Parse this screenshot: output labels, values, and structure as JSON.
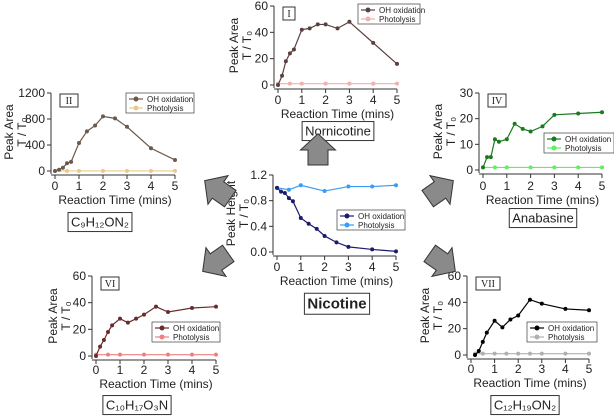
{
  "chart_data": [
    {
      "id": "I",
      "type": "line",
      "title": "Nornicotine",
      "numeral": "I",
      "xlabel": "Reaction Time (mins)",
      "ylabel": [
        "Peak Area",
        "T / T₀"
      ],
      "xlim": [
        0,
        5
      ],
      "ylim": [
        0,
        60
      ],
      "xticks": [
        0,
        1,
        2,
        3,
        4,
        5
      ],
      "yticks": [
        0,
        20,
        40,
        60
      ],
      "series": [
        {
          "name": "OH oxidation",
          "color": "#5b4040",
          "x": [
            0,
            0.17,
            0.33,
            0.5,
            0.67,
            1,
            1.33,
            1.67,
            2,
            2.5,
            3,
            4,
            5
          ],
          "y": [
            0,
            7,
            18,
            24,
            27,
            42,
            43,
            46,
            46,
            43,
            48,
            32,
            16
          ]
        },
        {
          "name": "Photolysis",
          "color": "#f0b0b0",
          "x": [
            0,
            0.5,
            1,
            2,
            3,
            4,
            5
          ],
          "y": [
            1,
            1,
            1,
            1,
            1,
            1,
            1
          ]
        }
      ]
    },
    {
      "id": "II",
      "type": "line",
      "title": "C₉H₁₂ON₂",
      "numeral": "II",
      "xlabel": "Reaction Time (mins)",
      "ylabel": [
        "Peak Area",
        "T / T₀"
      ],
      "xlim": [
        0,
        5
      ],
      "ylim": [
        0,
        1200
      ],
      "xticks": [
        0,
        1,
        2,
        3,
        4,
        5
      ],
      "yticks": [
        0,
        400,
        800,
        1200
      ],
      "series": [
        {
          "name": "OH oxidation",
          "color": "#6b5a4b",
          "x": [
            0,
            0.17,
            0.33,
            0.5,
            0.67,
            1,
            1.33,
            1.67,
            2,
            2.5,
            3,
            4,
            5
          ],
          "y": [
            0,
            20,
            50,
            120,
            140,
            430,
            610,
            700,
            840,
            810,
            680,
            350,
            170
          ]
        },
        {
          "name": "Photolysis",
          "color": "#ebc98e",
          "x": [
            0,
            0.5,
            1,
            2,
            3,
            4,
            5
          ],
          "y": [
            1,
            1,
            1,
            1,
            1,
            1,
            1
          ]
        }
      ]
    },
    {
      "id": "IV",
      "type": "line",
      "title": "Anabasine",
      "numeral": "IV",
      "xlabel": "Reaction Time (mins)",
      "ylabel": [
        "Peak Area",
        "T / T₀"
      ],
      "xlim": [
        0,
        5
      ],
      "ylim": [
        0,
        30
      ],
      "xticks": [
        0,
        1,
        2,
        3,
        4,
        5
      ],
      "yticks": [
        0,
        10,
        20,
        30
      ],
      "series": [
        {
          "name": "OH oxidation",
          "color": "#1b7a1f",
          "x": [
            0,
            0.17,
            0.33,
            0.5,
            0.67,
            1,
            1.33,
            1.67,
            2,
            2.5,
            3,
            4,
            5
          ],
          "y": [
            1,
            5,
            5,
            12,
            11,
            12,
            18,
            16,
            15,
            17,
            21.5,
            22,
            22.5
          ]
        },
        {
          "name": "Photolysis",
          "color": "#5ff05f",
          "x": [
            0,
            0.5,
            1,
            2,
            3,
            4,
            5
          ],
          "y": [
            1,
            1,
            1,
            1,
            1,
            1,
            1
          ]
        }
      ]
    },
    {
      "id": "Nicotine",
      "type": "line",
      "title": "Nicotine",
      "numeral": "",
      "xlabel": "Reaction Time (mins)",
      "ylabel": [
        "Peak Height",
        "T / T₀"
      ],
      "xlim": [
        0,
        5
      ],
      "ylim": [
        0,
        1.2
      ],
      "xticks": [
        0,
        1,
        2,
        3,
        4,
        5
      ],
      "yticks": [
        "0.0",
        "0.4",
        "0.8",
        "1.2"
      ],
      "series": [
        {
          "name": "OH oxidation",
          "color": "#1c1c6e",
          "x": [
            0,
            0.17,
            0.33,
            0.5,
            0.67,
            1,
            1.33,
            1.67,
            2,
            2.5,
            3,
            4,
            5
          ],
          "y": [
            1,
            0.94,
            0.92,
            0.84,
            0.79,
            0.53,
            0.44,
            0.36,
            0.25,
            0.15,
            0.08,
            0.04,
            0.01
          ]
        },
        {
          "name": "Photolysis",
          "color": "#3a9cf5",
          "x": [
            0,
            0.5,
            1,
            2,
            3,
            4,
            5
          ],
          "y": [
            1,
            0.97,
            1.04,
            0.95,
            1.02,
            1.02,
            1.04
          ]
        }
      ]
    },
    {
      "id": "VI",
      "type": "line",
      "title": "C₁₀H₁₇O₃N",
      "numeral": "VI",
      "xlabel": "Reaction Time (mins)",
      "ylabel": [
        "Peak Area",
        "T / T₀"
      ],
      "xlim": [
        0,
        5
      ],
      "ylim": [
        0,
        60
      ],
      "xticks": [
        0,
        1,
        2,
        3,
        4,
        5
      ],
      "yticks": [
        0,
        20,
        40,
        60
      ],
      "series": [
        {
          "name": "OH oxidation",
          "color": "#6b2c2c",
          "x": [
            0,
            0.17,
            0.33,
            0.5,
            0.67,
            1,
            1.33,
            1.67,
            2,
            2.5,
            3,
            4,
            5
          ],
          "y": [
            0,
            7,
            12,
            18,
            23,
            28,
            25,
            28,
            31,
            37,
            33,
            36,
            37
          ]
        },
        {
          "name": "Photolysis",
          "color": "#ef8080",
          "x": [
            0,
            0.5,
            1,
            2,
            3,
            4,
            5
          ],
          "y": [
            1,
            1,
            1,
            1,
            1,
            1,
            1
          ]
        }
      ]
    },
    {
      "id": "VII",
      "type": "line",
      "title": "C₁₂H₁₉ON₂",
      "numeral": "VII",
      "xlabel": "Reaction Time (mins)",
      "ylabel": [
        "Peak Area",
        "T / T₀"
      ],
      "xlim": [
        0,
        5
      ],
      "ylim": [
        0,
        60
      ],
      "xticks": [
        0,
        1,
        2,
        3,
        4,
        5
      ],
      "yticks": [
        0,
        20,
        40,
        60
      ],
      "series": [
        {
          "name": "OH oxidation",
          "color": "#000000",
          "x": [
            0.17,
            0.33,
            0.5,
            0.67,
            1,
            1.33,
            1.67,
            2,
            2.5,
            3,
            4,
            5
          ],
          "y": [
            0,
            3,
            10,
            17,
            26,
            21,
            27,
            30,
            42,
            39,
            35,
            34
          ]
        },
        {
          "name": "Photolysis",
          "color": "#b0b0b0",
          "x": [
            0.17,
            0.5,
            1,
            1.5,
            2,
            2.5,
            3,
            4,
            5
          ],
          "y": [
            1,
            1,
            1,
            1,
            1,
            1,
            1,
            1,
            1
          ]
        }
      ]
    }
  ]
}
